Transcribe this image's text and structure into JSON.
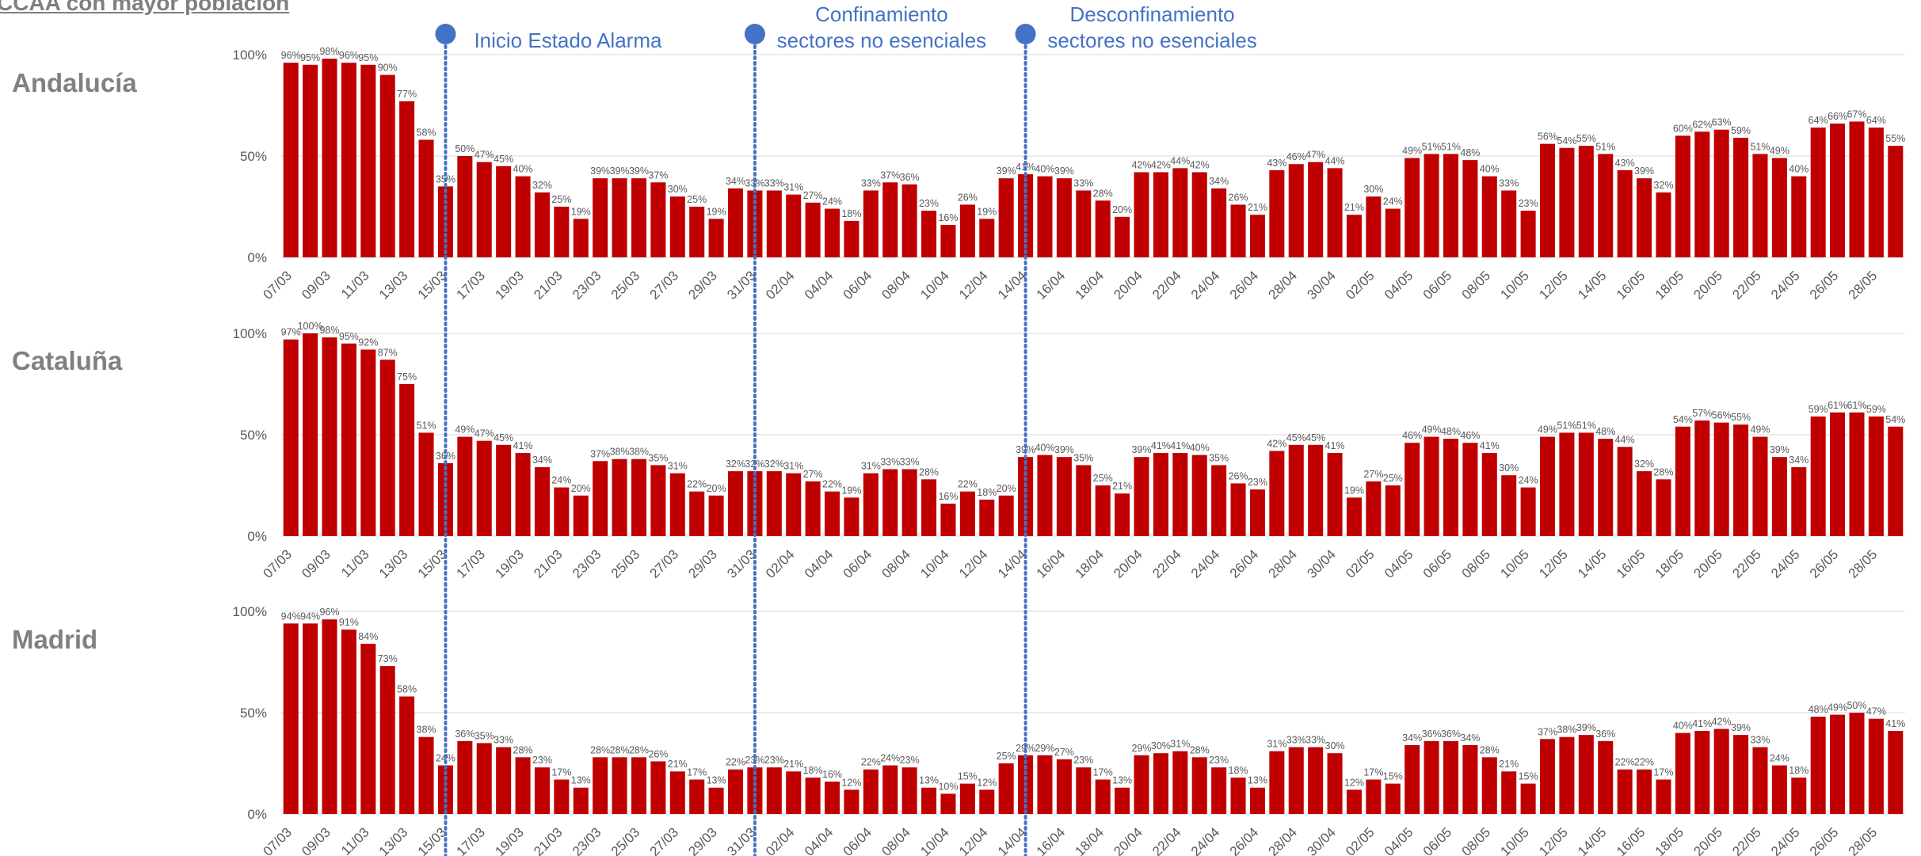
{
  "page_title": "CCAA con mayor población",
  "colors": {
    "bar": "#c00000",
    "event_line": "#4472c4",
    "grid": "#d9d9d9",
    "text": "#595959",
    "region_label": "#808080"
  },
  "chart_data": {
    "type": "bar",
    "x_tick_labels": [
      "07/03",
      "09/03",
      "11/03",
      "13/03",
      "15/03",
      "17/03",
      "19/03",
      "21/03",
      "23/03",
      "25/03",
      "27/03",
      "29/03",
      "31/03",
      "02/04",
      "04/04",
      "06/04",
      "08/04",
      "10/04",
      "12/04",
      "14/04",
      "16/04",
      "18/04",
      "20/04",
      "22/04",
      "24/04",
      "26/04",
      "28/04",
      "30/04",
      "02/05",
      "04/05",
      "06/05",
      "08/05",
      "10/05",
      "12/05",
      "14/05",
      "16/05",
      "18/05",
      "20/05",
      "22/05",
      "24/05",
      "26/05",
      "28/05"
    ],
    "y_ticks": [
      "0%",
      "50%",
      "100%"
    ],
    "ylim": [
      0,
      100
    ],
    "grid": true,
    "events": [
      {
        "bar_index": 8,
        "label": [
          "Inicio Estado Alarma"
        ]
      },
      {
        "bar_index": 24,
        "label": [
          "Confinamiento",
          "sectores no esenciales"
        ]
      },
      {
        "bar_index": 38,
        "label": [
          "Desconfinamiento",
          "sectores no esenciales"
        ]
      }
    ],
    "panels": [
      {
        "name": "Andalucía",
        "values": [
          96,
          95,
          98,
          96,
          95,
          90,
          77,
          58,
          35,
          50,
          47,
          45,
          40,
          32,
          25,
          19,
          39,
          39,
          39,
          37,
          30,
          25,
          19,
          34,
          33,
          33,
          31,
          27,
          24,
          18,
          33,
          37,
          36,
          23,
          16,
          26,
          19,
          39,
          41,
          40,
          39,
          33,
          28,
          20,
          42,
          42,
          44,
          42,
          34,
          26,
          21,
          43,
          46,
          47,
          44,
          21,
          30,
          24,
          49,
          51,
          51,
          48,
          40,
          33,
          23,
          56,
          54,
          55,
          51,
          43,
          39,
          32,
          60,
          62,
          63,
          59,
          51,
          49,
          40,
          64,
          66,
          67,
          64,
          55
        ]
      },
      {
        "name": "Cataluña",
        "values": [
          97,
          100,
          98,
          95,
          92,
          87,
          75,
          51,
          36,
          49,
          47,
          45,
          41,
          34,
          24,
          20,
          37,
          38,
          38,
          35,
          31,
          22,
          20,
          32,
          32,
          32,
          31,
          27,
          22,
          19,
          31,
          33,
          33,
          28,
          16,
          22,
          18,
          20,
          39,
          40,
          39,
          35,
          25,
          21,
          39,
          41,
          41,
          40,
          35,
          26,
          23,
          42,
          45,
          45,
          41,
          19,
          27,
          25,
          46,
          49,
          48,
          46,
          41,
          30,
          24,
          49,
          51,
          51,
          48,
          44,
          32,
          28,
          54,
          57,
          56,
          55,
          49,
          39,
          34,
          59,
          61,
          61,
          59,
          54
        ]
      },
      {
        "name": "Madrid",
        "values": [
          94,
          94,
          96,
          91,
          84,
          73,
          58,
          38,
          24,
          36,
          35,
          33,
          28,
          23,
          17,
          13,
          28,
          28,
          28,
          26,
          21,
          17,
          13,
          22,
          23,
          23,
          21,
          18,
          16,
          12,
          22,
          24,
          23,
          13,
          10,
          15,
          12,
          25,
          29,
          29,
          27,
          23,
          17,
          13,
          29,
          30,
          31,
          28,
          23,
          18,
          13,
          31,
          33,
          33,
          30,
          12,
          17,
          15,
          34,
          36,
          36,
          34,
          28,
          21,
          15,
          37,
          38,
          39,
          36,
          22,
          22,
          17,
          40,
          41,
          42,
          39,
          33,
          24,
          18,
          48,
          49,
          50,
          47,
          41
        ]
      }
    ]
  }
}
